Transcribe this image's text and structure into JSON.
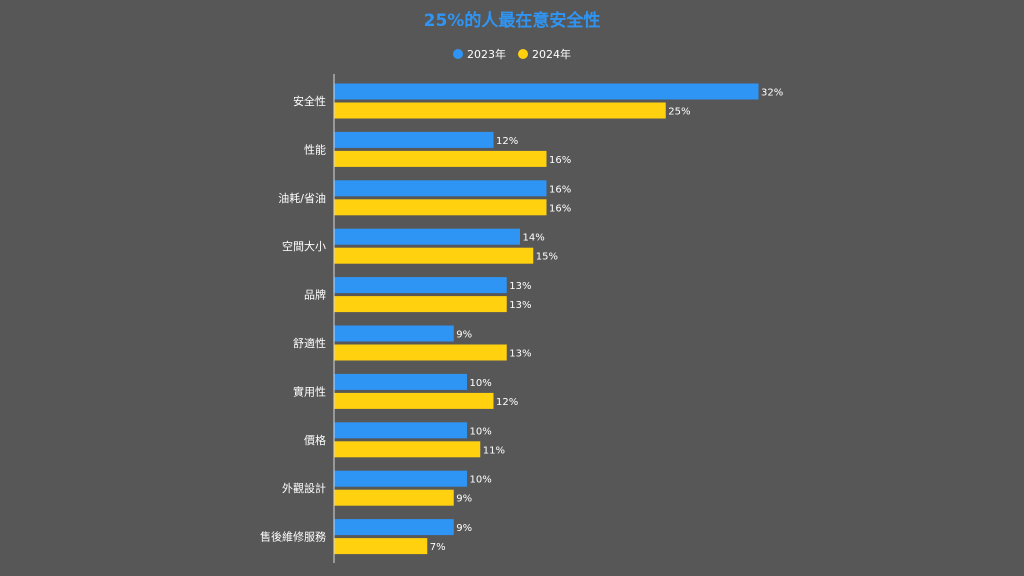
{
  "chart_data": {
    "type": "bar",
    "orientation": "horizontal",
    "title": "25%的人最在意安全性",
    "legend_position": "top",
    "grid": false,
    "xlim": [
      0,
      32
    ],
    "categories": [
      "安全性",
      "性能",
      "油耗/省油",
      "空間大小",
      "品牌",
      "舒適性",
      "實用性",
      "價格",
      "外觀設計",
      "售後維修服務"
    ],
    "series": [
      {
        "name": "2023年",
        "color": "#2f95f5",
        "values": [
          32,
          12,
          16,
          14,
          13,
          9,
          10,
          10,
          10,
          9
        ],
        "labels": [
          "32%",
          "12%",
          "16%",
          "14%",
          "13%",
          "9%",
          "10%",
          "10%",
          "10%",
          "9%"
        ]
      },
      {
        "name": "2024年",
        "color": "#ffd10f",
        "values": [
          25,
          16,
          16,
          15,
          13,
          13,
          12,
          11,
          9,
          7
        ],
        "labels": [
          "25%",
          "16%",
          "16%",
          "15%",
          "13%",
          "13%",
          "12%",
          "11%",
          "9%",
          "7%"
        ]
      }
    ]
  }
}
